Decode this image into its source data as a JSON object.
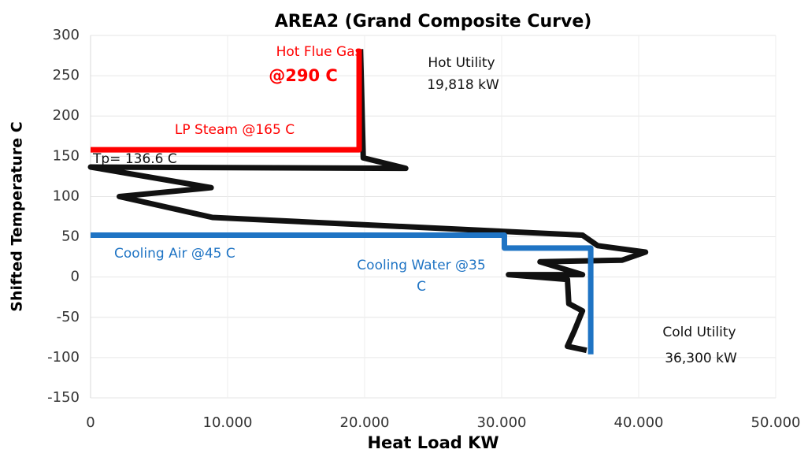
{
  "chart_data": {
    "type": "line",
    "title": "AREA2 (Grand Composite Curve)",
    "x_label": "Heat Load KW",
    "y_label": "Shifted Temperature C",
    "xlim": [
      0,
      50000
    ],
    "ylim": [
      -150,
      300
    ],
    "xticks": [
      0,
      {
        "value": 10000,
        "label": "10.000"
      },
      {
        "value": 20000,
        "label": "20.000"
      },
      {
        "value": 30000,
        "label": "30.000"
      },
      {
        "value": 40000,
        "label": "40.000"
      },
      {
        "value": 50000,
        "label": "50.000"
      }
    ],
    "yticks": [
      -150,
      -100,
      -50,
      0,
      50,
      100,
      150,
      200,
      250,
      300
    ],
    "grid": true,
    "series": [
      {
        "color": "#111111",
        "x": [
          19700,
          19900,
          23000,
          0,
          8800,
          2100,
          8900,
          35900,
          37000,
          40500,
          38800,
          32800,
          35900,
          30500,
          34800,
          34900,
          35900,
          35300,
          34800,
          36200
        ],
        "values": [
          283,
          148,
          135,
          136.6,
          111,
          100,
          74,
          52,
          39,
          31,
          21,
          19,
          3,
          3,
          -3,
          -33,
          -42,
          -67,
          -86,
          -91
        ]
      },
      {
        "color": "#ff0000",
        "x": [
          0,
          19600,
          19600
        ],
        "values": [
          158,
          158,
          283
        ]
      },
      {
        "color": "#1f74c4",
        "x": [
          0,
          30200,
          30200,
          36500,
          36500
        ],
        "values": [
          52,
          52,
          36,
          36,
          -96
        ]
      }
    ],
    "annotations": [
      "Hot Flue Gas",
      "@290 C",
      "Hot Utility",
      "19,818 kW",
      "LP Steam @165 C",
      "Tp= 136.6 C",
      "Cooling Air @45 C",
      "Cooling Water @35",
      "C",
      "Cold Utility",
      "36,300 kW"
    ]
  }
}
